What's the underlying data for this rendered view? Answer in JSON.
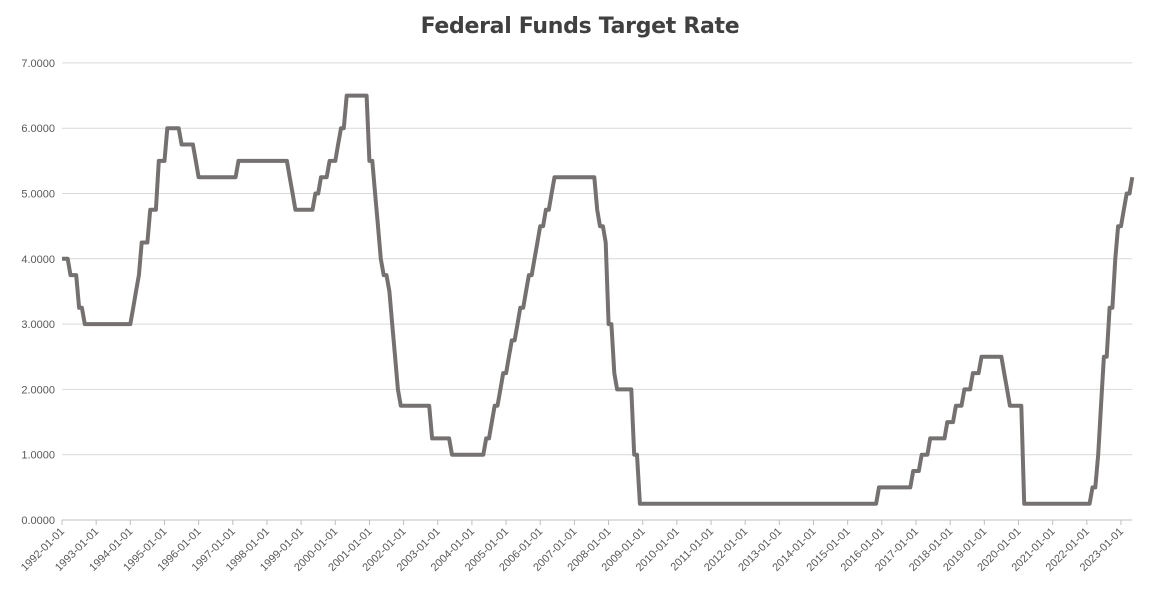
{
  "chart_data": {
    "type": "line",
    "title": "Federal Funds Target Rate",
    "xlabel": "",
    "ylabel": "",
    "ylim": [
      0,
      7
    ],
    "yticks": [
      "0.0000",
      "1.0000",
      "2.0000",
      "3.0000",
      "4.0000",
      "5.0000",
      "6.0000",
      "7.0000"
    ],
    "xticks": [
      "1992-01-01",
      "1993-01-01",
      "1994-01-01",
      "1995-01-01",
      "1996-01-01",
      "1997-01-01",
      "1998-01-01",
      "1999-01-01",
      "2000-01-01",
      "2001-01-01",
      "2002-01-01",
      "2003-01-01",
      "2004-01-01",
      "2005-01-01",
      "2006-01-01",
      "2007-01-01",
      "2008-01-01",
      "2009-01-01",
      "2010-01-01",
      "2011-01-01",
      "2012-01-01",
      "2013-01-01",
      "2014-01-01",
      "2015-01-01",
      "2016-01-01",
      "2017-01-01",
      "2018-01-01",
      "2019-01-01",
      "2020-01-01",
      "2021-01-01",
      "2022-01-01",
      "2023-01-01"
    ],
    "xlim": [
      "1992-01-01",
      "2023-05-01"
    ],
    "grid": true,
    "legend": "none",
    "line_color": "#767171",
    "series": [
      {
        "values": [
          [
            "1992-01",
            4.0
          ],
          [
            "1992-04",
            3.75
          ],
          [
            "1992-07",
            3.25
          ],
          [
            "1992-09",
            3.0
          ],
          [
            "1994-02",
            3.25
          ],
          [
            "1994-03",
            3.5
          ],
          [
            "1994-04",
            3.75
          ],
          [
            "1994-05",
            4.25
          ],
          [
            "1994-08",
            4.75
          ],
          [
            "1994-11",
            5.5
          ],
          [
            "1995-02",
            6.0
          ],
          [
            "1995-07",
            5.75
          ],
          [
            "1995-12",
            5.5
          ],
          [
            "1996-01",
            5.25
          ],
          [
            "1997-03",
            5.5
          ],
          [
            "1998-09",
            5.25
          ],
          [
            "1998-10",
            5.0
          ],
          [
            "1998-11",
            4.75
          ],
          [
            "1999-06",
            5.0
          ],
          [
            "1999-08",
            5.25
          ],
          [
            "1999-11",
            5.5
          ],
          [
            "2000-02",
            5.75
          ],
          [
            "2000-03",
            6.0
          ],
          [
            "2000-05",
            6.5
          ],
          [
            "2001-01",
            5.5
          ],
          [
            "2001-03",
            5.0
          ],
          [
            "2001-04",
            4.5
          ],
          [
            "2001-05",
            4.0
          ],
          [
            "2001-06",
            3.75
          ],
          [
            "2001-08",
            3.5
          ],
          [
            "2001-09",
            3.0
          ],
          [
            "2001-10",
            2.5
          ],
          [
            "2001-11",
            2.0
          ],
          [
            "2001-12",
            1.75
          ],
          [
            "2002-11",
            1.25
          ],
          [
            "2003-06",
            1.0
          ],
          [
            "2004-06",
            1.25
          ],
          [
            "2004-08",
            1.5
          ],
          [
            "2004-09",
            1.75
          ],
          [
            "2004-11",
            2.0
          ],
          [
            "2004-12",
            2.25
          ],
          [
            "2005-02",
            2.5
          ],
          [
            "2005-03",
            2.75
          ],
          [
            "2005-05",
            3.0
          ],
          [
            "2005-06",
            3.25
          ],
          [
            "2005-08",
            3.5
          ],
          [
            "2005-09",
            3.75
          ],
          [
            "2005-11",
            4.0
          ],
          [
            "2005-12",
            4.25
          ],
          [
            "2006-01",
            4.5
          ],
          [
            "2006-03",
            4.75
          ],
          [
            "2006-05",
            5.0
          ],
          [
            "2006-06",
            5.25
          ],
          [
            "2007-09",
            4.75
          ],
          [
            "2007-10",
            4.5
          ],
          [
            "2007-12",
            4.25
          ],
          [
            "2008-01",
            3.0
          ],
          [
            "2008-03",
            2.25
          ],
          [
            "2008-04",
            2.0
          ],
          [
            "2008-10",
            1.0
          ],
          [
            "2008-12",
            0.25
          ],
          [
            "2015-12",
            0.5
          ],
          [
            "2016-12",
            0.75
          ],
          [
            "2017-03",
            1.0
          ],
          [
            "2017-06",
            1.25
          ],
          [
            "2017-12",
            1.5
          ],
          [
            "2018-03",
            1.75
          ],
          [
            "2018-06",
            2.0
          ],
          [
            "2018-09",
            2.25
          ],
          [
            "2018-12",
            2.5
          ],
          [
            "2019-08",
            2.25
          ],
          [
            "2019-09",
            2.0
          ],
          [
            "2019-10",
            1.75
          ],
          [
            "2020-03",
            0.25
          ],
          [
            "2022-03",
            0.5
          ],
          [
            "2022-05",
            1.0
          ],
          [
            "2022-06",
            1.75
          ],
          [
            "2022-07",
            2.5
          ],
          [
            "2022-09",
            3.25
          ],
          [
            "2022-11",
            4.0
          ],
          [
            "2022-12",
            4.5
          ],
          [
            "2023-02",
            4.75
          ],
          [
            "2023-03",
            5.0
          ],
          [
            "2023-05",
            5.25
          ]
        ]
      }
    ]
  }
}
